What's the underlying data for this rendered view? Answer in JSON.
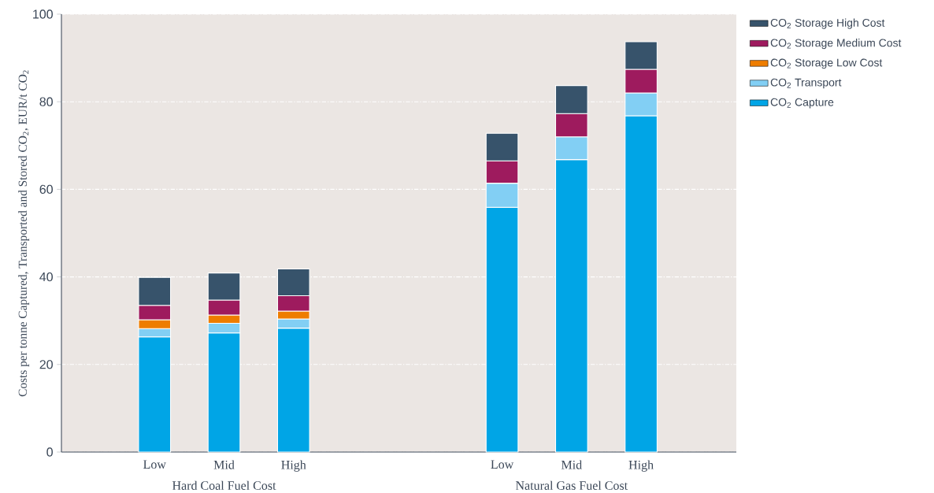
{
  "chart_data": {
    "type": "bar",
    "stacked": true,
    "ylabel": "Costs per tonne Captured, Transported and Stored CO$_{2}$, EUR/t CO$_{2}$",
    "categories": [
      "Low",
      "Mid",
      "High",
      null,
      null,
      "Low",
      "Mid",
      "High"
    ],
    "series": [
      {
        "name": "CO$_{2}$ Capture",
        "color": "#00a5e6",
        "values": [
          26.3,
          27.2,
          28.3,
          null,
          null,
          55.9,
          66.8,
          76.8
        ]
      },
      {
        "name": "CO$_{2}$ Transport",
        "color": "#82cff4",
        "values": [
          1.9,
          2.2,
          2.1,
          null,
          null,
          5.5,
          5.2,
          5.2
        ]
      },
      {
        "name": "CO$_{2}$ Storage Low Cost",
        "color": "#ee7d00",
        "values": [
          2.0,
          1.9,
          1.8,
          null,
          null,
          null,
          null,
          null
        ]
      },
      {
        "name": "CO$_{2}$ Storage Medium Cost",
        "color": "#9e1b5e",
        "values": [
          3.3,
          3.4,
          3.5,
          null,
          null,
          5.1,
          5.3,
          5.4
        ]
      },
      {
        "name": "CO$_{2}$ Storage High Cost",
        "color": "#37536b",
        "values": [
          6.4,
          6.2,
          6.1,
          null,
          null,
          6.3,
          6.4,
          6.3
        ]
      }
    ],
    "ylim": [
      0,
      100
    ],
    "yticks": [
      0,
      20,
      40,
      60,
      80,
      100
    ],
    "grid": "y",
    "legend": "right",
    "annotations": [
      "Hard Coal Fuel Cost",
      "Natural Gas Fuel Cost"
    ]
  }
}
